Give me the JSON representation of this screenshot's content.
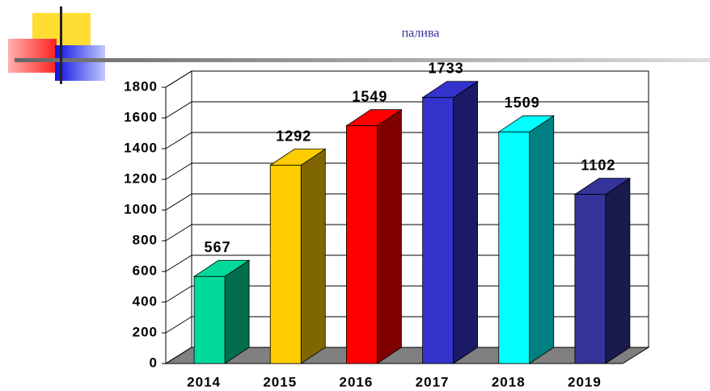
{
  "chart_data": {
    "type": "bar3d",
    "title": "палива",
    "categories": [
      "2014",
      "2015",
      "2016",
      "2017",
      "2018",
      "2019"
    ],
    "values": [
      567,
      1292,
      1549,
      1733,
      1509,
      1102
    ],
    "colors": [
      "#00d99a",
      "#ffcc00",
      "#ff0000",
      "#3333cc",
      "#00ffff",
      "#333399"
    ],
    "ylim": [
      0,
      1800
    ],
    "yticks": [
      0,
      200,
      400,
      600,
      800,
      1000,
      1200,
      1400,
      1600,
      1800
    ],
    "grid": true
  }
}
